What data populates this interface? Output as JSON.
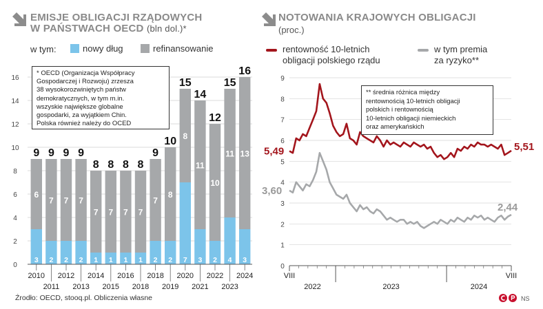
{
  "left": {
    "title_line1": "EMISJE OBLIGACJI RZĄDOWYCH",
    "title_line2": "W PAŃSTWACH OECD",
    "unit": "(bln dol.)*",
    "legend_prefix": "w tym:",
    "legend_new": "nowy dług",
    "legend_refi": "refinansowanie",
    "note_lines": [
      "* OECD (Organizacja Współpracy",
      "Gospodarczej i Rozwoju) zrzesza",
      "38 wysokorozwiniętych państw",
      "demokratycznych, w tym m.in.",
      "wszyskie największe globalne",
      "gospodarki, za wyjątkiem Chin.",
      "Polska również należy do OCED"
    ]
  },
  "right": {
    "title": "NOTOWANIA KRAJOWYCH OBLIGACJI",
    "unit": "(proc.)",
    "legend_red_line1": "rentowność 10-letnich",
    "legend_red_line2": "obligacji polskiego rządu",
    "legend_gray_line1": "w tym premia",
    "legend_gray_line2": "za ryzyko**",
    "note_lines": [
      "** średnia  różnica między",
      "rentownością 10-letnich obligacji",
      "polskich i rentownością",
      "10-letnich obligacji niemieckich",
      "oraz amerykańskich"
    ],
    "label_red_start": "5,49",
    "label_red_end": "5,51",
    "label_gray_start": "3,60",
    "label_gray_end": "2,44",
    "month_start": "VIII",
    "month_end": "VIII"
  },
  "source": "Źrodło: OECD, stooq.pl. Obliczenia własne",
  "logo_text": "NS",
  "colors": {
    "new_debt": "#7cc4ea",
    "refinancing": "#a6a8aa",
    "red": "#a3151c",
    "gray_line": "#a6a8aa",
    "title": "#8a8a8a"
  },
  "chart_data": [
    {
      "type": "bar",
      "stacked": true,
      "categories": [
        "2010",
        "2011",
        "2012",
        "2013",
        "2014",
        "2015",
        "2016",
        "2018",
        "2018",
        "2019",
        "2020",
        "2021",
        "2022",
        "2023",
        "2024"
      ],
      "series": [
        {
          "name": "nowy dług",
          "values": [
            3,
            2,
            2,
            2,
            1,
            1,
            1,
            1,
            2,
            2,
            7,
            3,
            2,
            4,
            3
          ]
        },
        {
          "name": "refinansowanie",
          "values": [
            6,
            7,
            7,
            7,
            7,
            7,
            7,
            7,
            7,
            8,
            8,
            11,
            10,
            11,
            13
          ]
        }
      ],
      "totals": [
        9,
        9,
        9,
        9,
        8,
        8,
        8,
        8,
        9,
        10,
        15,
        14,
        12,
        15,
        16
      ],
      "ylim": [
        0,
        16
      ],
      "yticks": [
        0,
        2,
        4,
        6,
        8,
        10,
        12,
        14,
        16
      ],
      "grid": true
    },
    {
      "type": "line",
      "x_labels": [
        "VIII",
        "2022",
        "2023",
        "2024",
        "VIII"
      ],
      "ylim": [
        0,
        9
      ],
      "yticks": [
        0,
        1,
        2,
        3,
        4,
        5,
        6,
        7,
        8,
        9
      ],
      "series": [
        {
          "name": "rentowność 10-letnich obligacji polskiego rządu",
          "values": [
            5.49,
            5.4,
            6.1,
            6.0,
            6.3,
            6.2,
            6.6,
            7.0,
            7.4,
            8.7,
            8.0,
            7.8,
            7.3,
            6.7,
            6.4,
            6.2,
            6.3,
            6.8,
            6.1,
            6.0,
            5.8,
            6.4,
            6.2,
            6.1,
            6.0,
            5.9,
            6.2,
            6.0,
            5.7,
            6.0,
            5.8,
            5.9,
            5.8,
            5.7,
            5.9,
            5.8,
            5.7,
            5.9,
            5.8,
            5.7,
            5.8,
            5.6,
            5.7,
            5.4,
            5.2,
            5.3,
            5.1,
            5.2,
            5.4,
            5.2,
            5.6,
            5.5,
            5.7,
            5.6,
            5.8,
            5.7,
            5.9,
            5.8,
            5.8,
            5.7,
            5.8,
            5.7,
            5.6,
            5.8,
            5.3,
            5.4,
            5.51
          ]
        },
        {
          "name": "w tym premia za ryzyko",
          "values": [
            3.6,
            3.5,
            4.0,
            3.8,
            3.6,
            3.9,
            3.8,
            4.1,
            4.5,
            5.4,
            5.0,
            4.6,
            4.0,
            3.7,
            3.4,
            3.3,
            3.2,
            3.4,
            3.0,
            2.8,
            2.6,
            2.9,
            2.7,
            2.8,
            2.6,
            2.5,
            2.7,
            2.6,
            2.4,
            2.2,
            2.3,
            2.2,
            2.1,
            2.2,
            2.2,
            2.0,
            2.1,
            2.0,
            2.1,
            1.9,
            1.8,
            1.9,
            2.0,
            2.1,
            2.0,
            2.2,
            2.1,
            2.0,
            2.2,
            2.1,
            2.3,
            2.2,
            2.1,
            2.3,
            2.2,
            2.4,
            2.3,
            2.4,
            2.2,
            2.3,
            2.2,
            2.1,
            2.3,
            2.4,
            2.2,
            2.35,
            2.44
          ]
        }
      ]
    }
  ]
}
